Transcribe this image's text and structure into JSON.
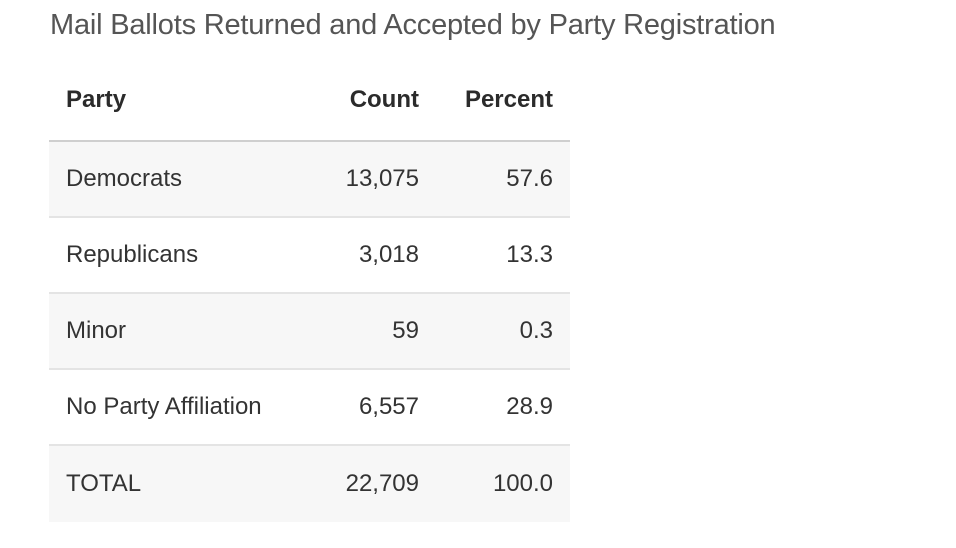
{
  "title": "Mail Ballots Returned and Accepted by Party Registration",
  "table": {
    "headers": {
      "party": "Party",
      "count": "Count",
      "percent": "Percent"
    },
    "rows": [
      {
        "party": "Democrats",
        "count": "13,075",
        "percent": "57.6"
      },
      {
        "party": "Republicans",
        "count": "3,018",
        "percent": "13.3"
      },
      {
        "party": "Minor",
        "count": "59",
        "percent": "0.3"
      },
      {
        "party": "No Party Affiliation",
        "count": "6,557",
        "percent": "28.9"
      },
      {
        "party": "TOTAL",
        "count": "22,709",
        "percent": "100.0"
      }
    ]
  },
  "chart_data": {
    "type": "table",
    "title": "Mail Ballots Returned and Accepted by Party Registration",
    "columns": [
      "Party",
      "Count",
      "Percent"
    ],
    "rows": [
      [
        "Democrats",
        13075,
        57.6
      ],
      [
        "Republicans",
        3018,
        13.3
      ],
      [
        "Minor",
        59,
        0.3
      ],
      [
        "No Party Affiliation",
        6557,
        28.9
      ],
      [
        "TOTAL",
        22709,
        100.0
      ]
    ],
    "layout": {
      "striped_rows": true,
      "numeric_align": "right"
    }
  },
  "colors": {
    "background": "#ffffff",
    "title_text": "#555555",
    "header_text": "#2b2b2b",
    "body_text": "#333333",
    "stripe": "#f7f7f7",
    "header_border": "#cfcfcf",
    "row_border": "#e4e4e4"
  }
}
